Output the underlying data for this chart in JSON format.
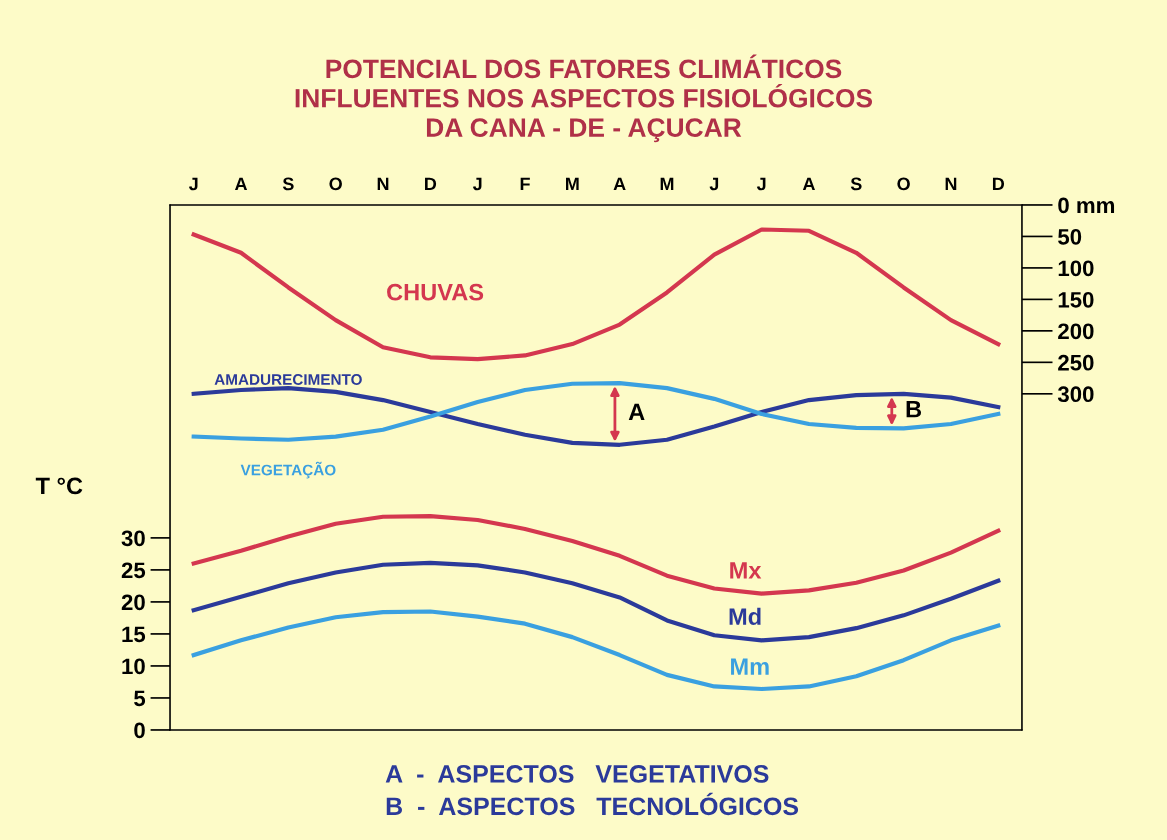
{
  "chart_data": {
    "type": "line",
    "title": "POTENCIAL DOS FATORES CLIMÁTICOS\nINFLUENTES NOS ASPECTOS FISIOLÓGICOS\nDA CANA - DE - AÇUCAR",
    "ylabel": "T °C",
    "categories": [
      "J",
      "A",
      "S",
      "O",
      "N",
      "D",
      "J",
      "F",
      "M",
      "A",
      "M",
      "J",
      "J",
      "A",
      "S",
      "O",
      "N",
      "D"
    ],
    "ylim": [
      0,
      82
    ],
    "yticks": [
      0,
      5,
      10,
      15,
      20,
      25,
      30
    ],
    "y2lim": [
      834,
      0
    ],
    "y2ticks": [
      {
        "value": 0,
        "label": "0 mm"
      },
      50,
      100,
      150,
      200,
      250,
      300
    ],
    "series": [
      {
        "name": "CHUVAS",
        "axis": "y2",
        "color": "#d4374f",
        "values": [
          47,
          76,
          131,
          183,
          226,
          242,
          245,
          239,
          221,
          190,
          139,
          79,
          39,
          41,
          76,
          131,
          183,
          221
        ]
      },
      {
        "name": "AMADURECIMENTO",
        "axis": "y2",
        "color": "#2b3a9a",
        "values": [
          300,
          294,
          291,
          297,
          310,
          329,
          348,
          365,
          378,
          381,
          373,
          352,
          329,
          310,
          302,
          300,
          306,
          321
        ]
      },
      {
        "name": "VEGETAÇÃO",
        "axis": "y2",
        "color": "#3aa0e0",
        "values": [
          368,
          371,
          373,
          368,
          357,
          336,
          313,
          294,
          284,
          283,
          291,
          308,
          332,
          348,
          354,
          355,
          348,
          332
        ]
      },
      {
        "name": "Mx",
        "color": "#d4374f",
        "values": [
          26.0,
          28.0,
          30.2,
          32.2,
          33.3,
          33.4,
          32.8,
          31.4,
          29.5,
          27.2,
          24.1,
          22.1,
          21.3,
          21.8,
          23.0,
          24.9,
          27.7,
          31.1
        ]
      },
      {
        "name": "Md",
        "color": "#2b3a9a",
        "values": [
          18.7,
          20.8,
          22.9,
          24.6,
          25.8,
          26.1,
          25.7,
          24.6,
          22.9,
          20.7,
          17.1,
          14.8,
          14.0,
          14.5,
          15.9,
          17.9,
          20.5,
          23.3
        ]
      },
      {
        "name": "Mm",
        "color": "#3aa0e0",
        "values": [
          11.7,
          14.0,
          16.0,
          17.6,
          18.4,
          18.5,
          17.7,
          16.6,
          14.5,
          11.7,
          8.6,
          6.8,
          6.4,
          6.8,
          8.4,
          10.9,
          14.0,
          16.3
        ]
      }
    ],
    "annotations": [
      "A",
      "B",
      "A  -  ASPECTOS   VEGETATIVOS\nB  -  ASPECTOS   TECNOLÓGICOS"
    ],
    "grid": false,
    "legend": false,
    "marker": "none",
    "line_style": "solid"
  }
}
